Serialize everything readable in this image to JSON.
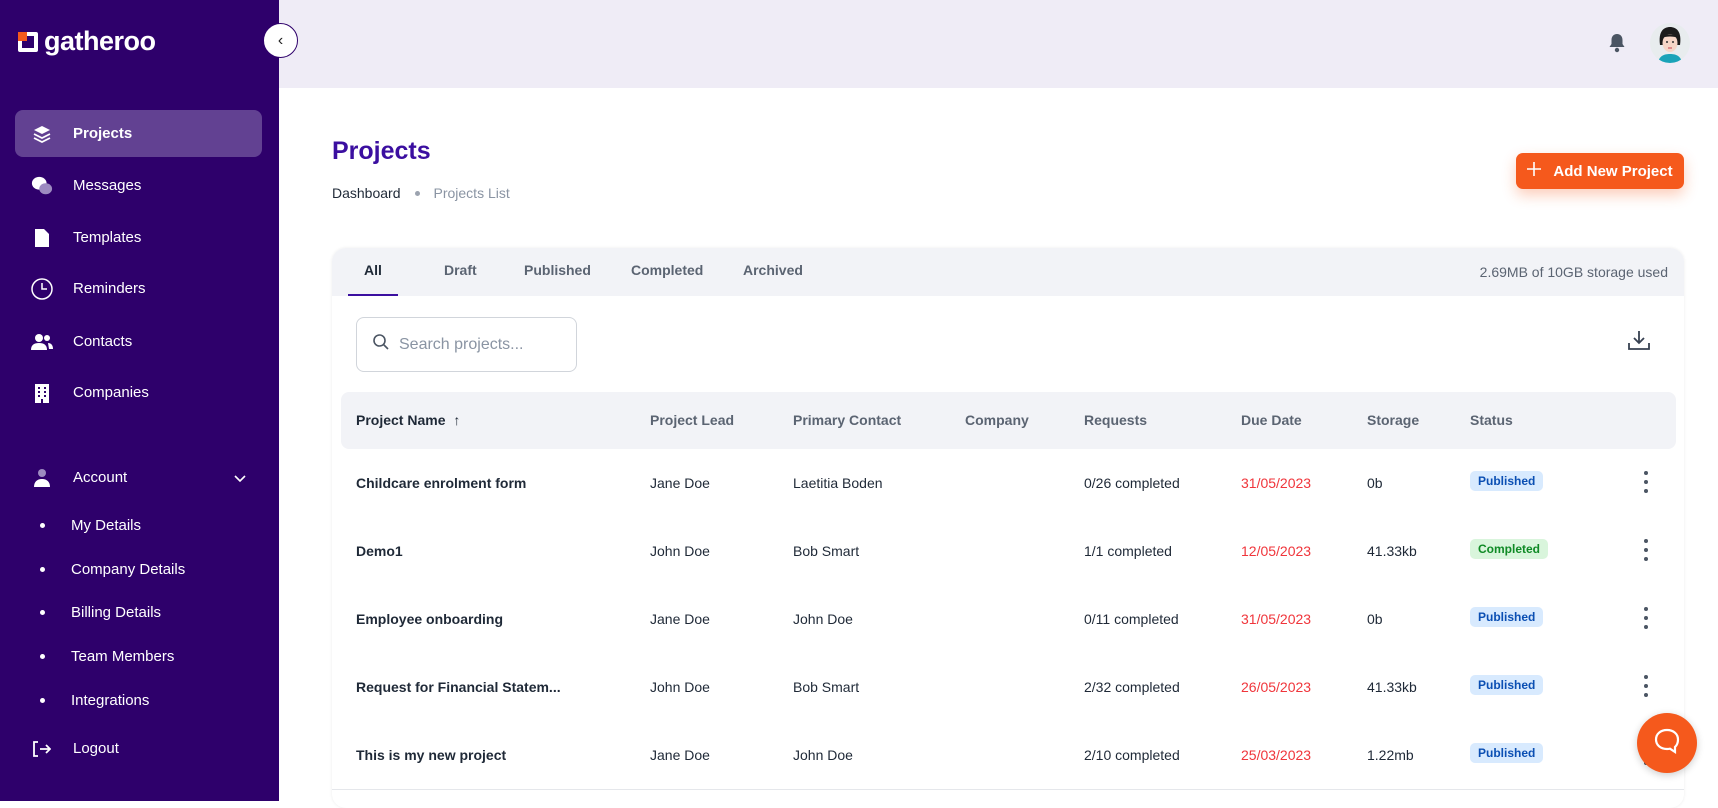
{
  "brand": {
    "name": "gatheroo",
    "accent": "#f5591c",
    "sidebar_bg": "#2e006b"
  },
  "sidebar": {
    "items": [
      {
        "label": "Projects",
        "icon": "layers-icon",
        "active": true
      },
      {
        "label": "Messages",
        "icon": "chat-bubbles-icon"
      },
      {
        "label": "Templates",
        "icon": "document-icon"
      },
      {
        "label": "Reminders",
        "icon": "clock-icon"
      },
      {
        "label": "Contacts",
        "icon": "users-icon"
      },
      {
        "label": "Companies",
        "icon": "building-icon"
      }
    ],
    "account": {
      "label": "Account",
      "icon": "user-icon",
      "expanded": true,
      "sub_items": [
        "My Details",
        "Company Details",
        "Billing Details",
        "Team Members",
        "Integrations"
      ]
    },
    "logout": {
      "label": "Logout",
      "icon": "logout-icon"
    }
  },
  "page": {
    "title": "Projects",
    "breadcrumb": [
      "Dashboard",
      "Projects List"
    ],
    "add_button": "Add New Project"
  },
  "tabs": {
    "items": [
      "All",
      "Draft",
      "Published",
      "Completed",
      "Archived"
    ],
    "active": "All",
    "storage_used": "2.69MB of 10GB storage used"
  },
  "search": {
    "placeholder": "Search projects...",
    "value": ""
  },
  "table": {
    "columns": [
      "Project Name",
      "Project Lead",
      "Primary Contact",
      "Company",
      "Requests",
      "Due Date",
      "Storage",
      "Status"
    ],
    "sort": {
      "column": "Project Name",
      "direction": "ascending"
    },
    "rows": [
      {
        "name": "Childcare enrolment form",
        "lead": "Jane Doe",
        "contact": "Laetitia Boden",
        "company": "",
        "requests": "0/26 completed",
        "due": "31/05/2023",
        "storage": "0b",
        "status": "Published"
      },
      {
        "name": "Demo1",
        "lead": "John Doe",
        "contact": "Bob Smart",
        "company": "",
        "requests": "1/1 completed",
        "due": "12/05/2023",
        "storage": "41.33kb",
        "status": "Completed"
      },
      {
        "name": "Employee onboarding",
        "lead": "Jane Doe",
        "contact": "John Doe",
        "company": "",
        "requests": "0/11 completed",
        "due": "31/05/2023",
        "storage": "0b",
        "status": "Published"
      },
      {
        "name": "Request for Financial Statem...",
        "lead": "John Doe",
        "contact": "Bob Smart",
        "company": "",
        "requests": "2/32 completed",
        "due": "26/05/2023",
        "storage": "41.33kb",
        "status": "Published"
      },
      {
        "name": "This is my new project",
        "lead": "Jane Doe",
        "contact": "John Doe",
        "company": "",
        "requests": "2/10 completed",
        "due": "25/03/2023",
        "storage": "1.22mb",
        "status": "Published"
      }
    ]
  }
}
